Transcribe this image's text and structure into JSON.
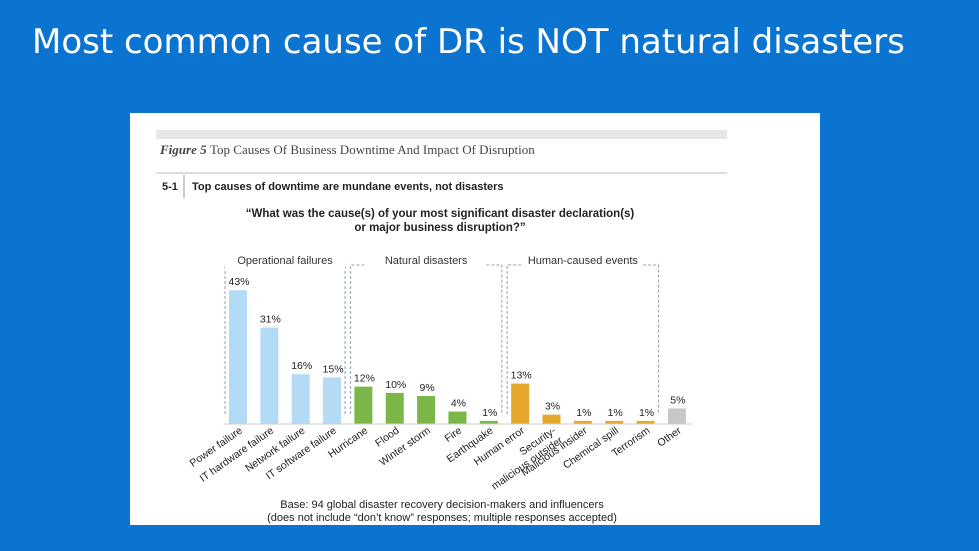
{
  "slide": {
    "title": "Most common cause of DR is NOT natural disasters"
  },
  "figure": {
    "number": "Figure 5",
    "title": "Top Causes Of Business Downtime And Impact Of Disruption",
    "panel_number": "5-1",
    "panel_title": "Top causes of downtime are mundane events, not disasters",
    "question_line1": "“What was the cause(s) of your most significant disaster declaration(s)",
    "question_line2": "or major business disruption?”",
    "base_line1": "Base: 94 global disaster recovery decision-makers and influencers",
    "base_line2": "(does not include “don’t know” responses; multiple responses accepted)"
  },
  "chart_data": {
    "type": "bar",
    "unit": "%",
    "ylim": [
      0,
      45
    ],
    "groups": [
      {
        "label": "Operational failures",
        "start": 0,
        "end": 3
      },
      {
        "label": "Natural disasters",
        "start": 4,
        "end": 8
      },
      {
        "label": "Human-caused events",
        "start": 9,
        "end": 13
      }
    ],
    "categories": [
      [
        "Power failure"
      ],
      [
        "IT hardware failure"
      ],
      [
        "Network failure"
      ],
      [
        "IT software failure"
      ],
      [
        "Hurricane"
      ],
      [
        "Flood"
      ],
      [
        "Winter storm"
      ],
      [
        "Fire"
      ],
      [
        "Earthquake"
      ],
      [
        "Human error"
      ],
      [
        "Security-",
        "malicious outsider"
      ],
      [
        "Malicious insider"
      ],
      [
        "Chemical spill"
      ],
      [
        "Terrorism"
      ],
      [
        "Other"
      ]
    ],
    "values": [
      43,
      31,
      16,
      15,
      12,
      10,
      9,
      4,
      1,
      13,
      3,
      1,
      1,
      1,
      5
    ],
    "data_labels": [
      "43%",
      "31%",
      "16%",
      "15%",
      "12%",
      "10%",
      "9%",
      "4%",
      "1%",
      "13%",
      "3%",
      "1%",
      "1%",
      "1%",
      "5%"
    ],
    "colors": [
      "#b3dbf6",
      "#b3dbf6",
      "#b3dbf6",
      "#b3dbf6",
      "#7ab648",
      "#7ab648",
      "#7ab648",
      "#7ab648",
      "#7ab648",
      "#e6a82c",
      "#e6a82c",
      "#e6a82c",
      "#e6a82c",
      "#e6a82c",
      "#c8c8c8"
    ]
  }
}
